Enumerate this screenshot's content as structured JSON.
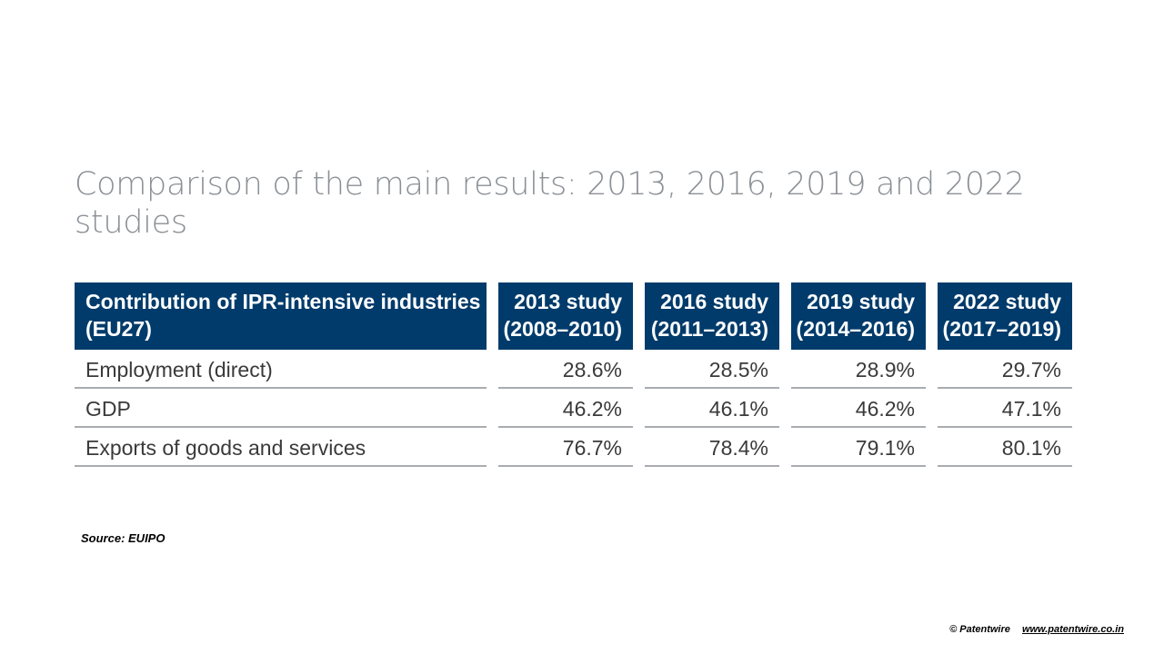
{
  "title": "Comparison of the main results: 2013, 2016, 2019 and 2022 studies",
  "table": {
    "header": {
      "row_label": [
        "Contribution of IPR-intensive industries",
        "(EU27)"
      ],
      "columns": [
        [
          "2013 study",
          "(2008–2010)"
        ],
        [
          "2016 study",
          "(2011–2013)"
        ],
        [
          "2019 study",
          "(2014–2016)"
        ],
        [
          "2022 study",
          "(2017–2019)"
        ]
      ]
    },
    "rows": [
      {
        "label": "Employment (direct)",
        "values": [
          "28.6%",
          "28.5%",
          "28.9%",
          "29.7%"
        ]
      },
      {
        "label": "GDP",
        "values": [
          "46.2%",
          "46.1%",
          "46.2%",
          "47.1%"
        ]
      },
      {
        "label": "Exports of goods and services",
        "values": [
          "76.7%",
          "78.4%",
          "79.1%",
          "80.1%"
        ]
      }
    ]
  },
  "source": "Source: EUIPO",
  "footer": {
    "copyright": "© Patentwire",
    "link": "www.patentwire.co.in"
  },
  "colors": {
    "header_bg": "#003b6b",
    "title_text": "#8b9095",
    "rule": "#a9acb0"
  }
}
